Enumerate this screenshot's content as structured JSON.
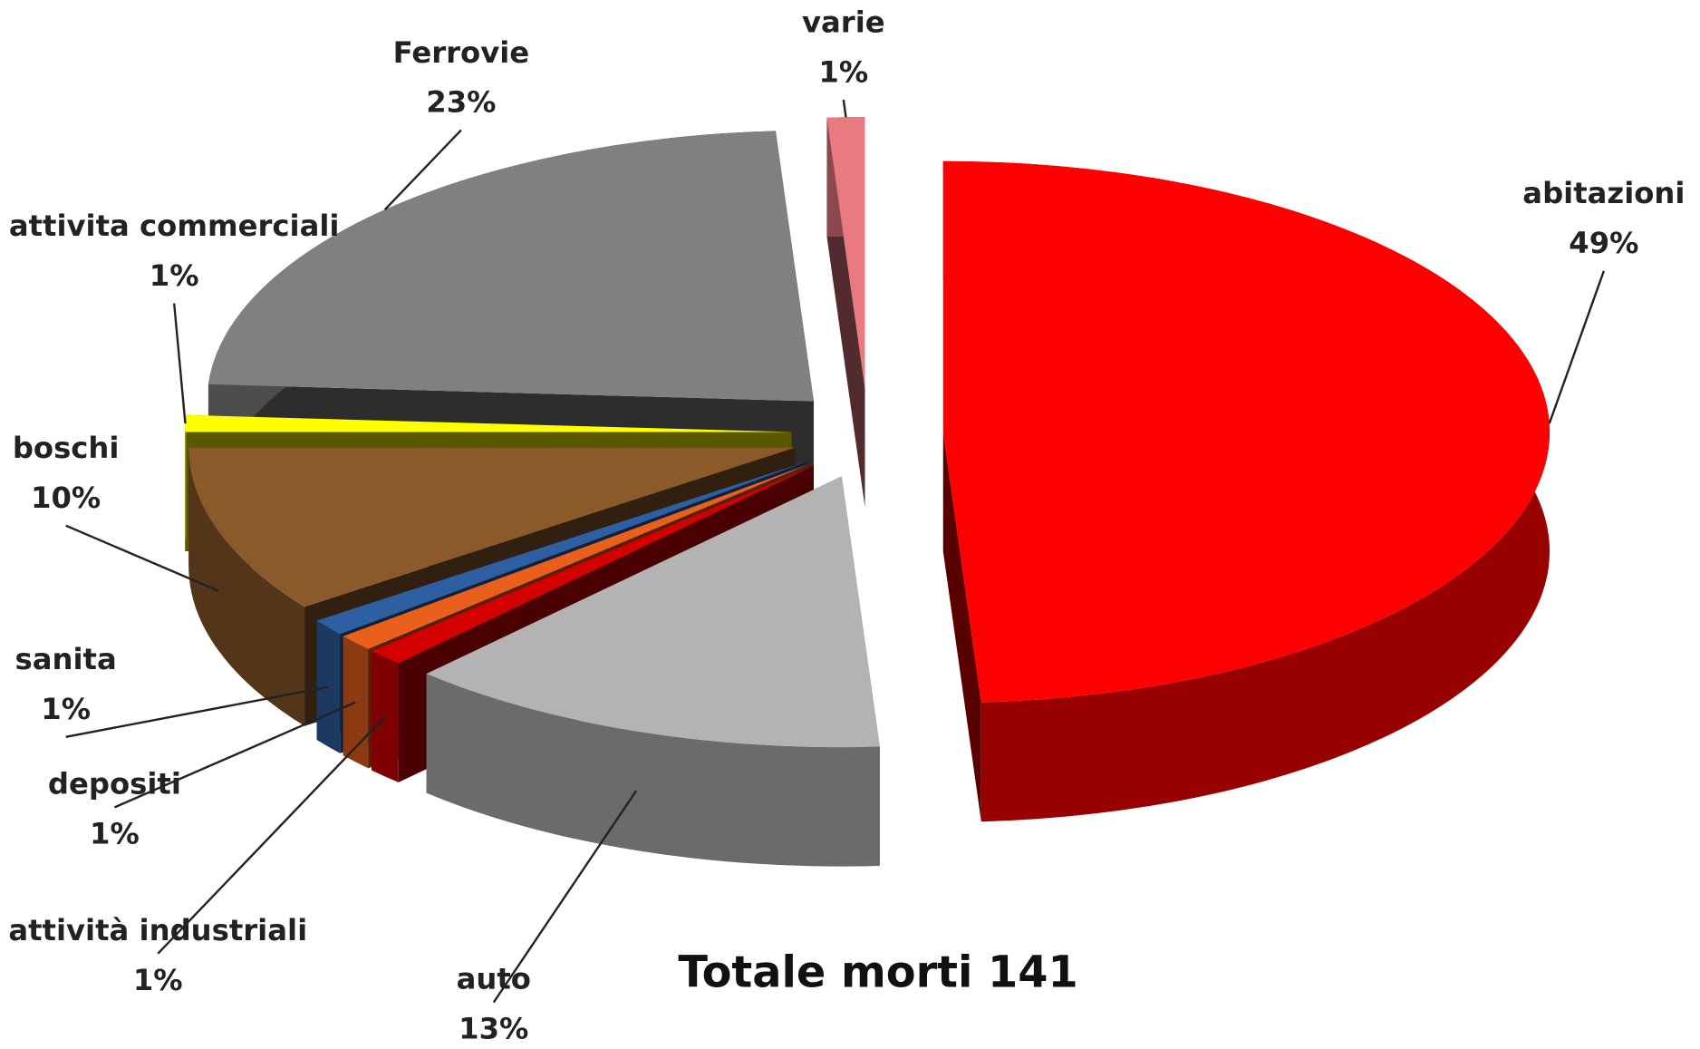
{
  "chart_data": {
    "type": "pie3d",
    "annotation": "Totale morti 141",
    "categories": [
      "abitazioni",
      "auto",
      "attività industriali",
      "depositi",
      "sanita",
      "boschi",
      "attivita commerciali",
      "Ferrovie",
      "varie"
    ],
    "values": [
      49,
      13,
      1,
      1,
      1,
      10,
      1,
      23,
      1
    ],
    "value_labels": [
      "49%",
      "13%",
      "1%",
      "1%",
      "1%",
      "10%",
      "1%",
      "23%",
      "1%"
    ],
    "colors": [
      "#ff0000",
      "#b3b3b3",
      "#d40000",
      "#e8601c",
      "#2e5fa3",
      "#8b5a2b",
      "#ffff00",
      "#808080",
      "#e87a80"
    ]
  }
}
